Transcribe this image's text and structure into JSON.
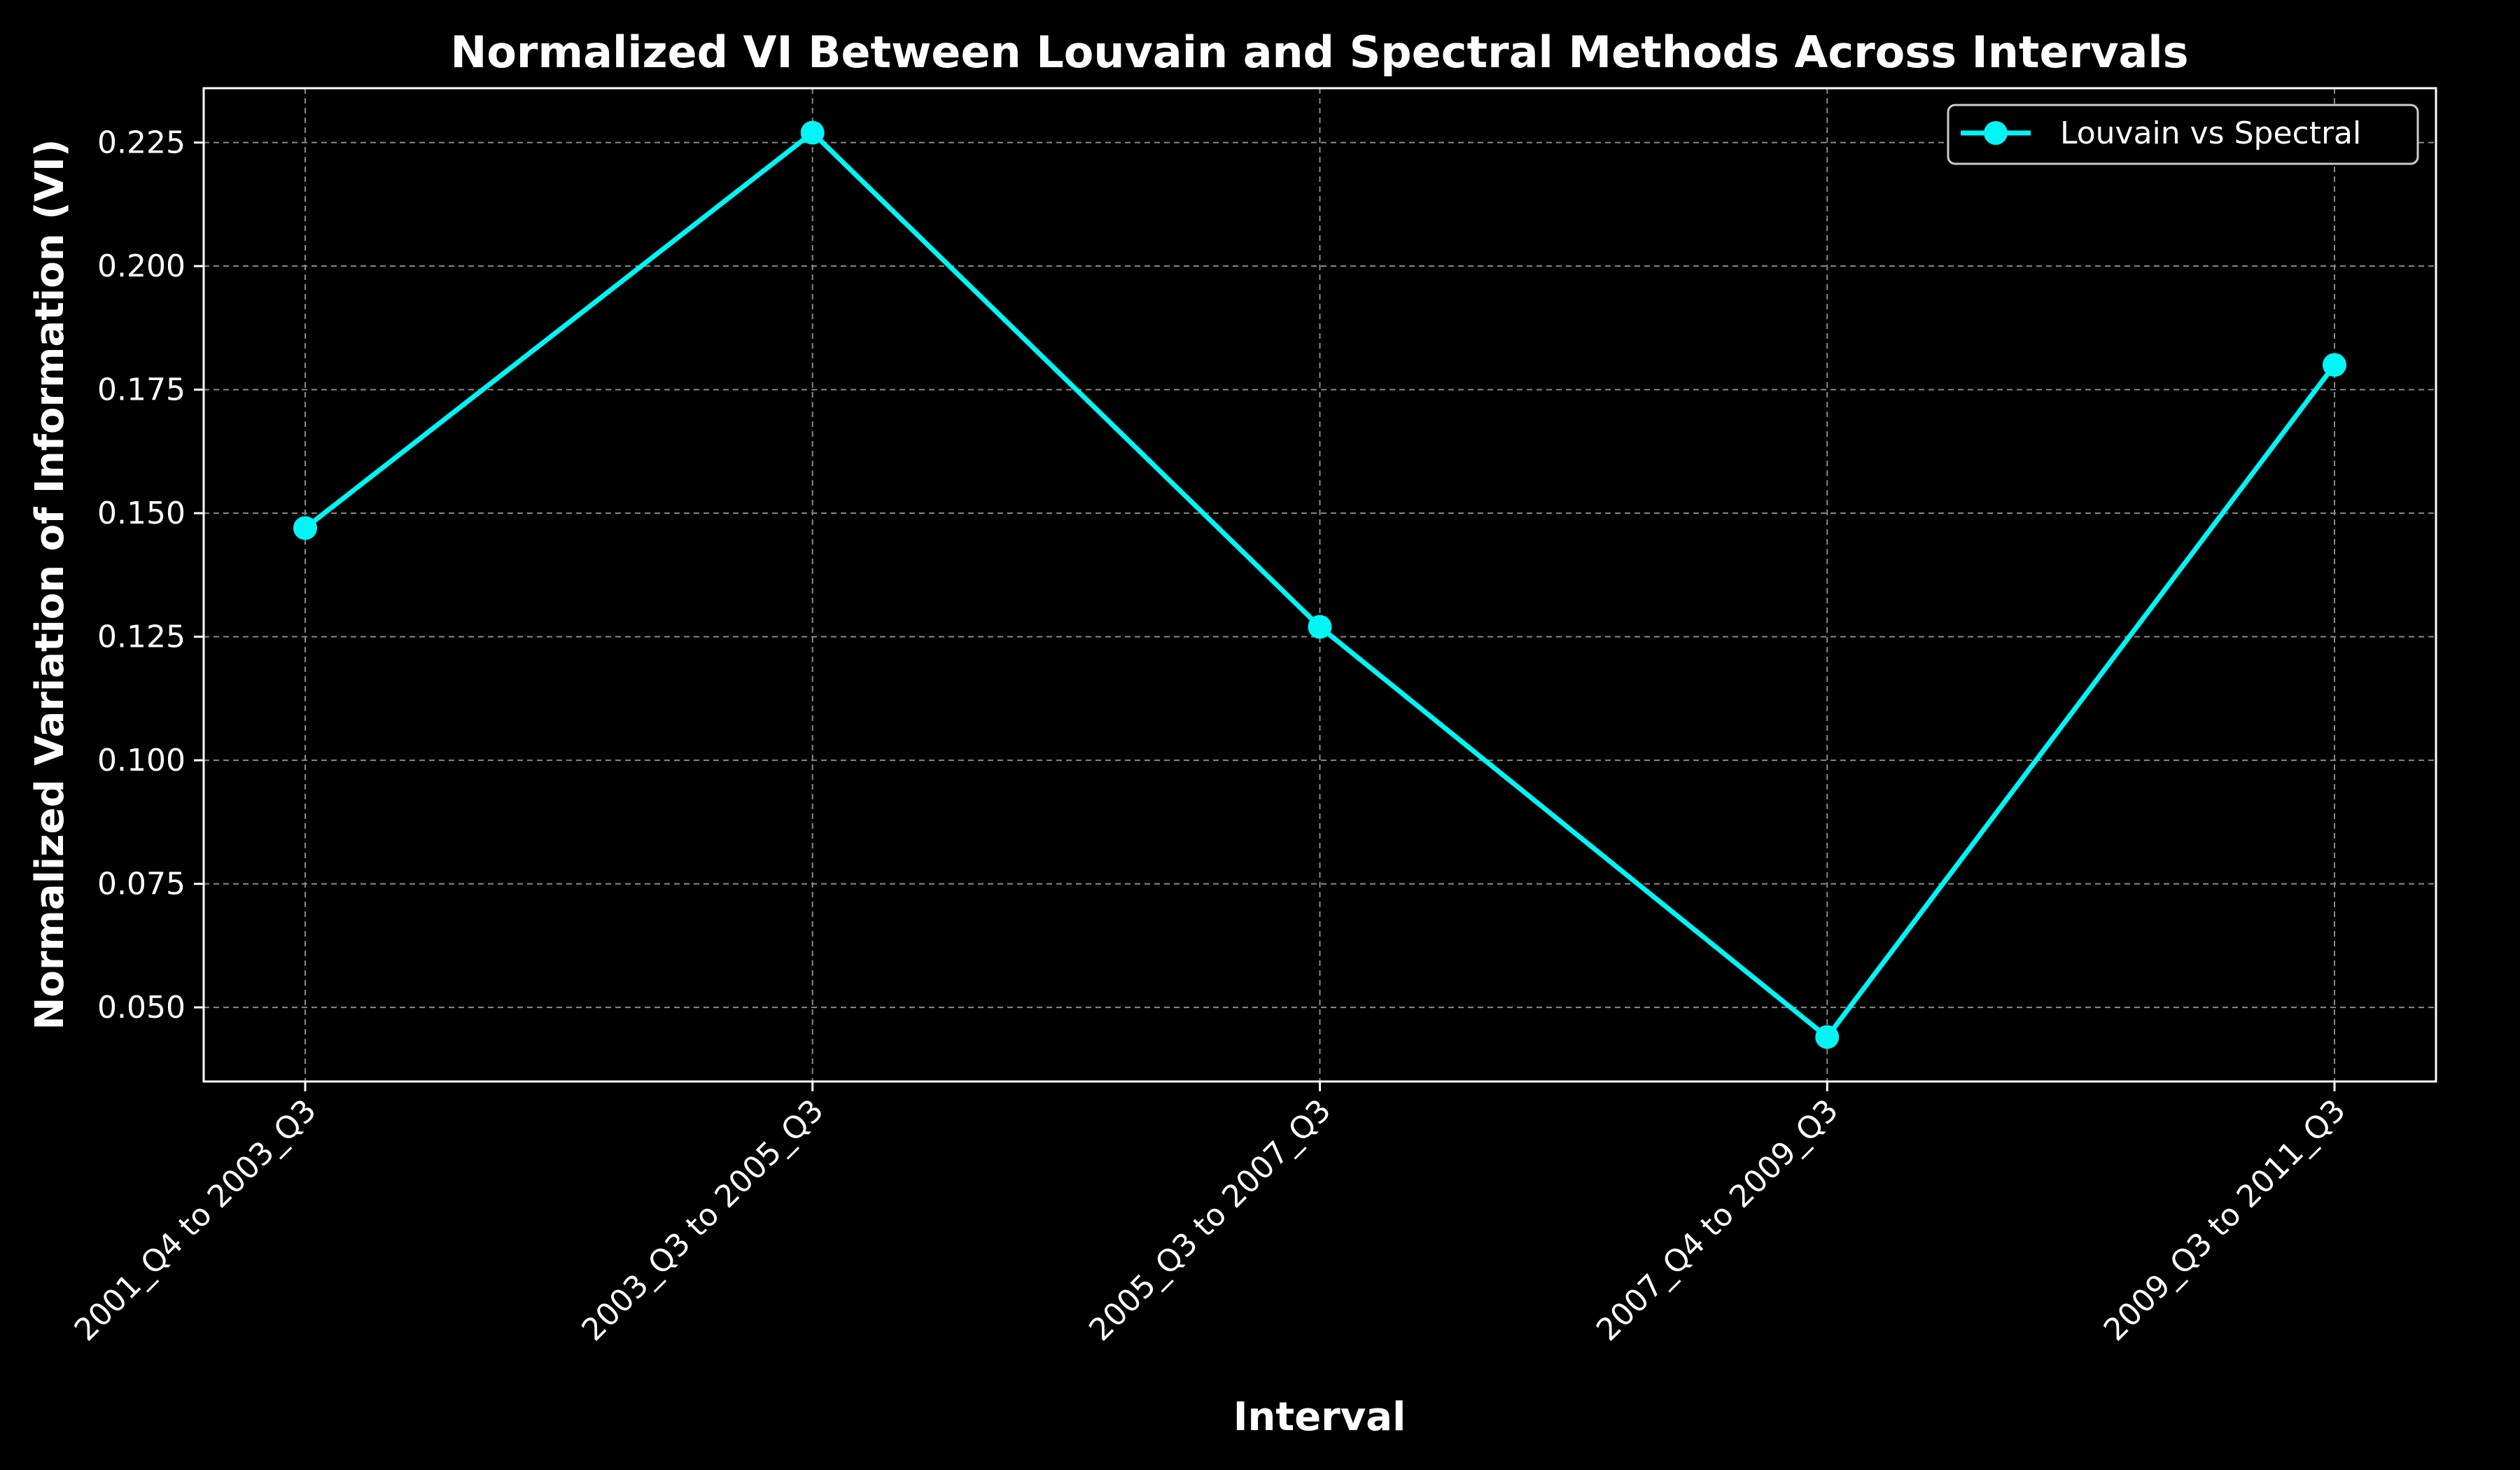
{
  "chart_data": {
    "type": "line",
    "title": "Normalized VI Between Louvain and Spectral Methods Across Intervals",
    "xlabel": "Interval",
    "ylabel": "Normalized Variation of Information (VI)",
    "categories": [
      "2001_Q4 to 2003_Q3",
      "2003_Q3 to 2005_Q3",
      "2005_Q3 to 2007_Q3",
      "2007_Q4 to 2009_Q3",
      "2009_Q3 to 2011_Q3"
    ],
    "series": [
      {
        "name": "Louvain vs Spectral",
        "values": [
          0.147,
          0.227,
          0.127,
          0.044,
          0.18
        ],
        "color": "#00f5f5",
        "marker": "circle"
      }
    ],
    "ylim": [
      0.035,
      0.236
    ],
    "yticks": [
      0.05,
      0.075,
      0.1,
      0.125,
      0.15,
      0.175,
      0.2,
      0.225
    ],
    "ytick_labels": [
      "0.050",
      "0.075",
      "0.100",
      "0.125",
      "0.150",
      "0.175",
      "0.200",
      "0.225"
    ],
    "grid": true,
    "legend_position": "top-right",
    "background": "#000000",
    "foreground": "#ffffff"
  }
}
